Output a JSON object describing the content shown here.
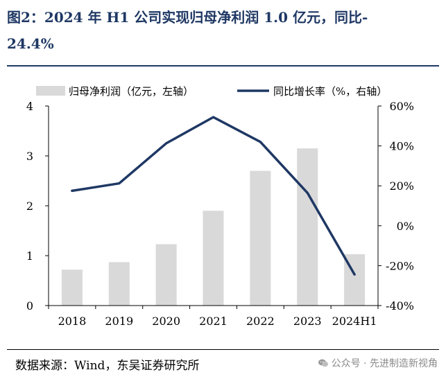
{
  "title": {
    "line1": "图2：2024 年 H1 公司实现归母净利润 1.0 亿元，同比-",
    "line2": "24.4%"
  },
  "source": "数据来源：Wind，东吴证券研究所",
  "watermark": {
    "text": "公众号 · 先进制造新视角",
    "icon": "wechat-icon"
  },
  "colors": {
    "bar": "#d9d9d9",
    "line": "#1f3864",
    "title": "#1f3864"
  },
  "chart_data": {
    "type": "bar",
    "categories": [
      "2018",
      "2019",
      "2020",
      "2021",
      "2022",
      "2023",
      "2024H1"
    ],
    "series": [
      {
        "name": "归母净利润（亿元，左轴）",
        "type": "bar",
        "axis": "left",
        "values": [
          0.72,
          0.87,
          1.23,
          1.9,
          2.7,
          3.15,
          1.03
        ]
      },
      {
        "name": "同比增长率（%，右轴）",
        "type": "line",
        "axis": "right",
        "values": [
          17.5,
          21.2,
          41.3,
          54.4,
          42.0,
          16.5,
          -24.4
        ]
      }
    ],
    "left_axis": {
      "min": 0,
      "max": 4,
      "ticks": [
        "0",
        "1",
        "2",
        "3",
        "4"
      ],
      "tick_values": [
        0,
        1,
        2,
        3,
        4
      ]
    },
    "right_axis": {
      "min": -40,
      "max": 60,
      "ticks": [
        "-40%",
        "-20%",
        "0%",
        "20%",
        "40%",
        "60%"
      ],
      "tick_values": [
        -40,
        -20,
        0,
        20,
        40,
        60
      ]
    },
    "legend": "top",
    "grid": false
  }
}
